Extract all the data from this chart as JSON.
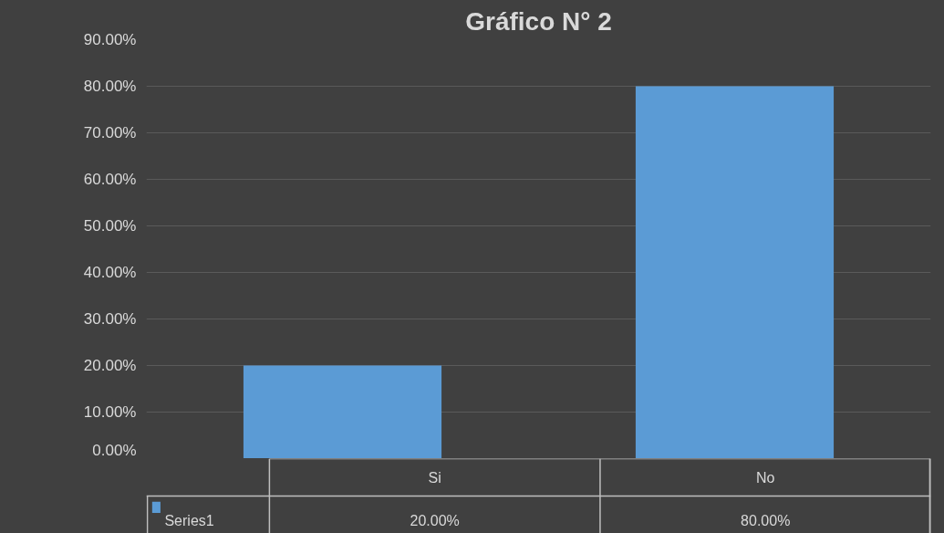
{
  "chart_data": {
    "type": "bar",
    "title": "Gráfico N° 2",
    "categories": [
      "Si",
      "No"
    ],
    "series": [
      {
        "name": "Series1",
        "color": "#5b9bd5",
        "values": [
          20,
          80
        ],
        "value_labels": [
          "20.00%",
          "80.00%"
        ]
      }
    ],
    "ylim": [
      0,
      90
    ],
    "yticks": [
      {
        "value": 0,
        "label": "0.00%"
      },
      {
        "value": 10,
        "label": "10.00%"
      },
      {
        "value": 20,
        "label": "20.00%"
      },
      {
        "value": 30,
        "label": "30.00%"
      },
      {
        "value": 40,
        "label": "40.00%"
      },
      {
        "value": 50,
        "label": "50.00%"
      },
      {
        "value": 60,
        "label": "60.00%"
      },
      {
        "value": 70,
        "label": "70.00%"
      },
      {
        "value": 80,
        "label": "80.00%"
      },
      {
        "value": 90,
        "label": "90.00%"
      }
    ],
    "grid": "y",
    "legend": "bottom"
  }
}
